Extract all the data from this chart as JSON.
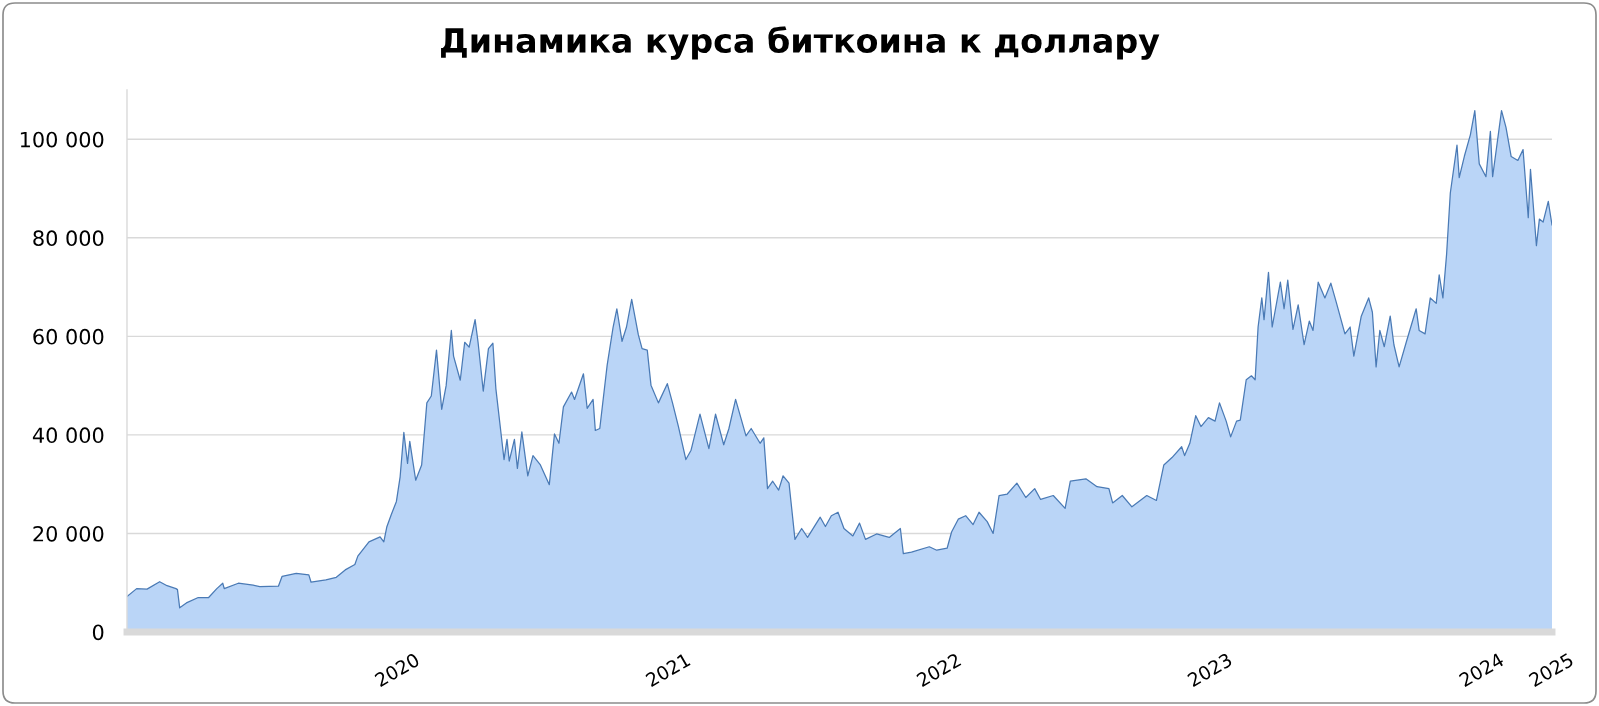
{
  "chart_data": {
    "type": "area",
    "title": "Динамика курса биткоина к доллару",
    "color": "#4a7ab5",
    "x": [
      "2020-01-01",
      "2020-01-14",
      "2020-01-28",
      "2020-02-14",
      "2020-02-24",
      "2020-03-07",
      "2020-03-09",
      "2020-03-12",
      "2020-03-21",
      "2020-04-06",
      "2020-04-20",
      "2020-05-01",
      "2020-05-09",
      "2020-05-11",
      "2020-05-30",
      "2020-06-19",
      "2020-06-28",
      "2020-07-23",
      "2020-07-28",
      "2020-08-16",
      "2020-09-02",
      "2020-09-05",
      "2020-09-25",
      "2020-10-09",
      "2020-10-21",
      "2020-11-03",
      "2020-11-07",
      "2020-11-22",
      "2020-12-07",
      "2020-12-12",
      "2020-12-16",
      "2020-12-22",
      "2020-12-29",
      "2021-01-03",
      "2021-01-08",
      "2021-01-13",
      "2021-01-16",
      "2021-01-24",
      "2021-02-01",
      "2021-02-08",
      "2021-02-14",
      "2021-02-21",
      "2021-02-28",
      "2021-03-06",
      "2021-03-13",
      "2021-03-16",
      "2021-03-25",
      "2021-03-31",
      "2021-04-06",
      "2021-04-14",
      "2021-04-18",
      "2021-04-25",
      "2021-05-02",
      "2021-05-08",
      "2021-05-12",
      "2021-05-23",
      "2021-05-27",
      "2021-05-30",
      "2021-06-06",
      "2021-06-10",
      "2021-06-16",
      "2021-06-24",
      "2021-07-01",
      "2021-07-11",
      "2021-07-23",
      "2021-07-30",
      "2021-08-05",
      "2021-08-11",
      "2021-08-22",
      "2021-08-26",
      "2021-09-07",
      "2021-09-12",
      "2021-09-20",
      "2021-09-23",
      "2021-09-29",
      "2021-10-09",
      "2021-10-17",
      "2021-10-22",
      "2021-10-29",
      "2021-11-04",
      "2021-11-11",
      "2021-11-20",
      "2021-11-25",
      "2021-12-02",
      "2021-12-07",
      "2021-12-17",
      "2021-12-29",
      "2022-01-05",
      "2022-01-13",
      "2022-01-23",
      "2022-01-30",
      "2022-02-11",
      "2022-02-23",
      "2022-03-04",
      "2022-03-15",
      "2022-03-22",
      "2022-03-31",
      "2022-04-14",
      "2022-04-21",
      "2022-05-03",
      "2022-05-08",
      "2022-05-13",
      "2022-05-20",
      "2022-05-28",
      "2022-06-03",
      "2022-06-11",
      "2022-06-19",
      "2022-06-28",
      "2022-07-06",
      "2022-07-23",
      "2022-07-30",
      "2022-08-07",
      "2022-08-16",
      "2022-08-24",
      "2022-09-05",
      "2022-09-14",
      "2022-09-22",
      "2022-10-07",
      "2022-10-24",
      "2022-11-08",
      "2022-11-12",
      "2022-11-23",
      "2022-12-17",
      "2022-12-27",
      "2023-01-10",
      "2023-01-16",
      "2023-01-25",
      "2023-02-04",
      "2023-02-14",
      "2023-02-22",
      "2023-03-05",
      "2023-03-13",
      "2023-03-21",
      "2023-04-01",
      "2023-04-14",
      "2023-04-26",
      "2023-05-08",
      "2023-05-16",
      "2023-06-02",
      "2023-06-18",
      "2023-06-25",
      "2023-07-16",
      "2023-07-31",
      "2023-08-16",
      "2023-08-21",
      "2023-09-03",
      "2023-09-16",
      "2023-10-06",
      "2023-10-19",
      "2023-10-29",
      "2023-11-09",
      "2023-11-22",
      "2023-11-26",
      "2023-12-03",
      "2023-12-11",
      "2023-12-18",
      "2023-12-28",
      "2024-01-06",
      "2024-01-12",
      "2024-01-21",
      "2024-01-27",
      "2024-02-04",
      "2024-02-09",
      "2024-02-17",
      "2024-02-24",
      "2024-02-29",
      "2024-03-04",
      "2024-03-09",
      "2024-03-12",
      "2024-03-18",
      "2024-03-23",
      "2024-04-03",
      "2024-04-08",
      "2024-04-13",
      "2024-04-20",
      "2024-04-27",
      "2024-05-05",
      "2024-05-12",
      "2024-05-17",
      "2024-05-24",
      "2024-06-02",
      "2024-06-10",
      "2024-06-17",
      "2024-06-29",
      "2024-07-06",
      "2024-07-11",
      "2024-07-21",
      "2024-07-31",
      "2024-08-05",
      "2024-08-10",
      "2024-08-15",
      "2024-08-21",
      "2024-08-29",
      "2024-09-03",
      "2024-09-10",
      "2024-09-20",
      "2024-10-03",
      "2024-10-07",
      "2024-10-15",
      "2024-10-22",
      "2024-10-30",
      "2024-11-03",
      "2024-11-08",
      "2024-11-13",
      "2024-11-18",
      "2024-11-27",
      "2024-11-30",
      "2024-12-07",
      "2024-12-15",
      "2024-12-21",
      "2024-12-27",
      "2025-01-05",
      "2025-01-11",
      "2025-01-14",
      "2025-01-26",
      "2025-02-01",
      "2025-02-08",
      "2025-02-17",
      "2025-02-24",
      "2025-03-03",
      "2025-03-06",
      "2025-03-14",
      "2025-03-18",
      "2025-03-23",
      "2025-03-30",
      "2025-04-04"
    ],
    "values": [
      7200,
      8800,
      8700,
      10200,
      9400,
      8800,
      8600,
      4900,
      5900,
      7000,
      7000,
      8800,
      9900,
      8800,
      9900,
      9500,
      9200,
      9300,
      11300,
      11900,
      11600,
      10100,
      10600,
      11100,
      12600,
      13700,
      15400,
      18300,
      19300,
      18300,
      21300,
      23800,
      26500,
      31500,
      40500,
      34200,
      38700,
      30800,
      33900,
      46500,
      47900,
      57200,
      45200,
      50000,
      61200,
      56000,
      51100,
      58800,
      57800,
      63400,
      58800,
      48900,
      57500,
      58600,
      49400,
      35000,
      39100,
      34700,
      39100,
      33200,
      40600,
      31700,
      35800,
      33900,
      29900,
      40200,
      38300,
      45700,
      48700,
      47200,
      52400,
      45400,
      47200,
      40900,
      41300,
      54200,
      61900,
      65600,
      59000,
      61900,
      67500,
      60300,
      57500,
      57200,
      50100,
      46500,
      50400,
      46500,
      41700,
      35000,
      36900,
      44200,
      37200,
      44200,
      38000,
      41300,
      47200,
      39800,
      41300,
      38300,
      39400,
      29100,
      30600,
      28800,
      31700,
      30200,
      18800,
      21000,
      19200,
      23300,
      21400,
      23600,
      24300,
      21000,
      19500,
      22100,
      18800,
      19900,
      19200,
      21000,
      15900,
      16200,
      17300,
      16600,
      17000,
      20300,
      22900,
      23600,
      21800,
      24300,
      22400,
      20000,
      27700,
      28000,
      30200,
      27300,
      29100,
      26900,
      27700,
      25100,
      30600,
      31100,
      29500,
      29100,
      26200,
      27700,
      25400,
      27700,
      26700,
      33900,
      35400,
      37600,
      35800,
      38300,
      43900,
      41700,
      43500,
      42800,
      46500,
      42800,
      39600,
      42800,
      43000,
      51200,
      52000,
      51200,
      61900,
      67800,
      63400,
      73000,
      61900,
      71000,
      65600,
      71400,
      61400,
      66400,
      58300,
      63100,
      61200,
      71000,
      67800,
      70800,
      67100,
      60500,
      61900,
      56000,
      64100,
      67800,
      64900,
      53800,
      61200,
      57900,
      64100,
      58300,
      53800,
      59000,
      65600,
      61200,
      60500,
      67800,
      66700,
      72500,
      67800,
      76700,
      89100,
      98800,
      92200,
      96600,
      100900,
      105800,
      95000,
      92400,
      101600,
      92400,
      105800,
      102400,
      96500,
      95700,
      97900,
      84100,
      93900,
      78400,
      83800,
      83200,
      87400,
      82600
    ],
    "xlim": [
      "2020-01-01",
      "2025-04-04"
    ],
    "xticks": [
      {
        "value": "2020-12-31",
        "label": "2020"
      },
      {
        "value": "2021-12-31",
        "label": "2021"
      },
      {
        "value": "2022-12-31",
        "label": "2022"
      },
      {
        "value": "2023-12-31",
        "label": "2023"
      },
      {
        "value": "2024-12-31",
        "label": "2024"
      },
      {
        "value": "2025-04-04",
        "label": "2025"
      }
    ],
    "ylim": [
      0,
      110000
    ],
    "yticks": [
      0,
      {
        "value": 20000,
        "label": "20 000"
      },
      {
        "value": 40000,
        "label": "40 000"
      },
      {
        "value": 60000,
        "label": "60 000"
      },
      {
        "value": 80000,
        "label": "80 000"
      },
      {
        "value": 100000,
        "label": "100 000"
      }
    ],
    "grid": "y"
  }
}
